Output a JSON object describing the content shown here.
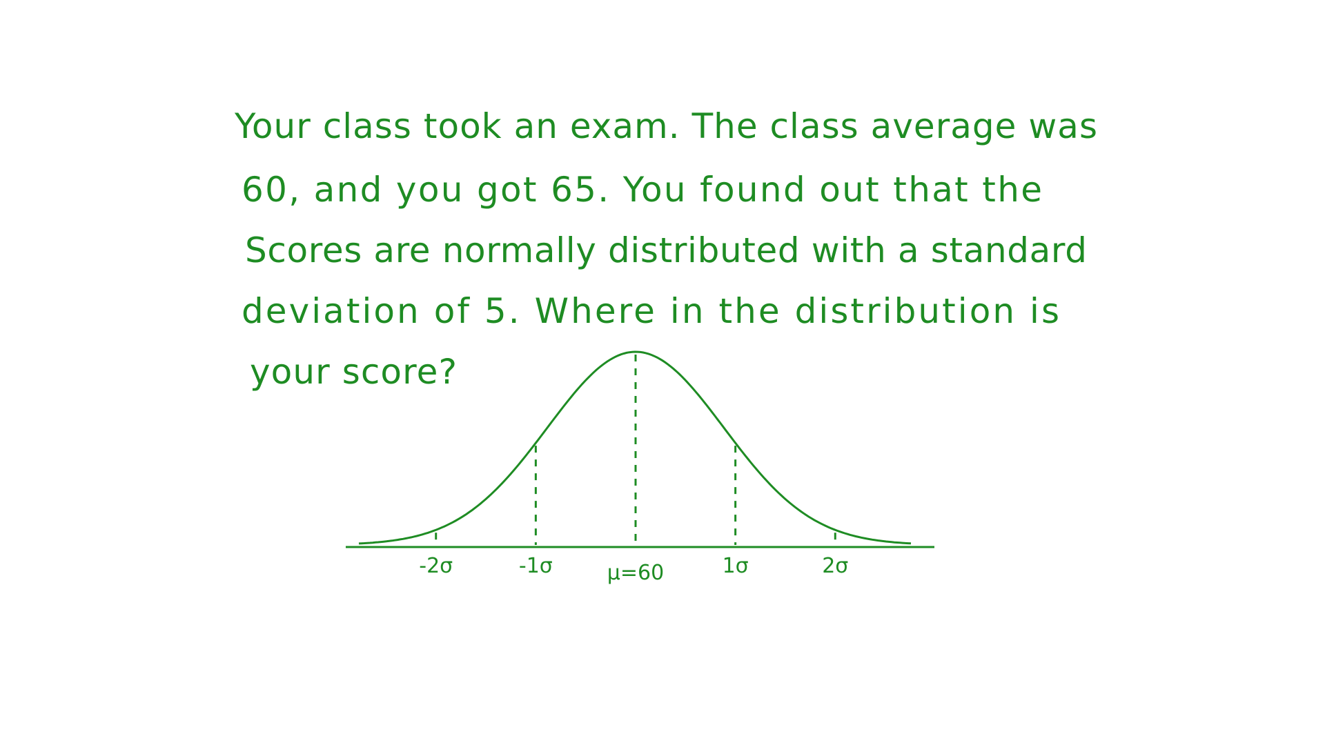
{
  "question": {
    "lines": [
      "Your class took an exam. The class average was",
      "60, and you got 65. You found out that the",
      "Scores are normally distributed with a standard",
      "deviation of 5. Where in the distribution is",
      "your score?"
    ]
  },
  "curve": {
    "labels": [
      "-2σ",
      "-1σ",
      "μ=60",
      "1σ",
      "2σ"
    ]
  }
}
